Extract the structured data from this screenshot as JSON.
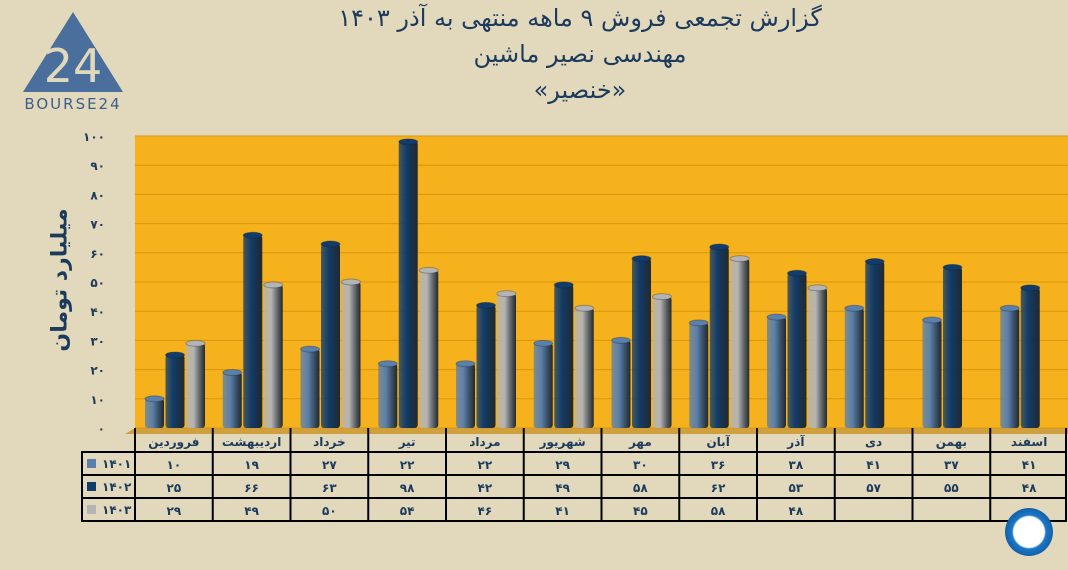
{
  "title_lines": [
    "گزارش تجمعی فروش ۹ ماهه منتهی به آذر ۱۴۰۳",
    "مهندسی نصیر ماشین",
    "«خنصیر»"
  ],
  "logo": {
    "text": "BOURSE24",
    "mark": "24"
  },
  "colors": {
    "bg": "#e2d9bd",
    "plot": "#f5b21c",
    "s1401": "#5b80ab",
    "s1402": "#123c6a",
    "s1403": "#b4b4b4"
  },
  "chart_data": {
    "type": "bar",
    "title": "گزارش تجمعی فروش ۹ ماهه منتهی به آذر ۱۴۰۳",
    "ylabel": "میلیارد تومان",
    "xlabel": "",
    "ylim": [
      0,
      100
    ],
    "yticks": [
      0,
      10,
      20,
      30,
      40,
      50,
      60,
      70,
      80,
      90,
      100
    ],
    "grid": true,
    "categories": [
      "فروردین",
      "اردیبهشت",
      "خرداد",
      "تیر",
      "مرداد",
      "شهریور",
      "مهر",
      "آبان",
      "آذر",
      "دی",
      "بهمن",
      "اسفند"
    ],
    "series": [
      {
        "name": "۱۴۰۱",
        "values": [
          10,
          19,
          27,
          22,
          22,
          29,
          30,
          36,
          38,
          41,
          37,
          41
        ]
      },
      {
        "name": "۱۴۰۲",
        "values": [
          25,
          66,
          63,
          98,
          42,
          49,
          58,
          62,
          53,
          57,
          55,
          48
        ]
      },
      {
        "name": "۱۴۰۳",
        "values": [
          29,
          49,
          50,
          54,
          46,
          41,
          45,
          58,
          48,
          null,
          null,
          null
        ]
      }
    ]
  }
}
